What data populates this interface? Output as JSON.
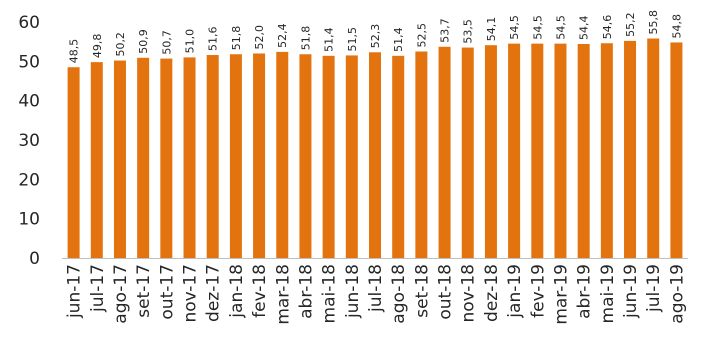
{
  "chart_data": {
    "type": "bar",
    "title": "",
    "xlabel": "",
    "ylabel": "",
    "ylim": [
      0,
      60
    ],
    "yticks": [
      0,
      10,
      20,
      30,
      40,
      50,
      60
    ],
    "grid": false,
    "bar_color": "#E2730E",
    "categories": [
      "jun-17",
      "jul-17",
      "ago-17",
      "set-17",
      "out-17",
      "nov-17",
      "dez-17",
      "jan-18",
      "fev-18",
      "mar-18",
      "abr-18",
      "mai-18",
      "jun-18",
      "jul-18",
      "ago-18",
      "set-18",
      "out-18",
      "nov-18",
      "dez-18",
      "jan-19",
      "fev-19",
      "mar-19",
      "abr-19",
      "mai-19",
      "jun-19",
      "jul-19",
      "ago-19"
    ],
    "values": [
      48.5,
      49.8,
      50.2,
      50.9,
      50.7,
      51.0,
      51.6,
      51.8,
      52.0,
      52.4,
      51.8,
      51.4,
      51.5,
      52.3,
      51.4,
      52.5,
      53.7,
      53.5,
      54.1,
      54.5,
      54.5,
      54.5,
      54.4,
      54.6,
      55.2,
      55.8,
      54.8
    ],
    "value_labels": [
      "48,5",
      "49,8",
      "50,2",
      "50,9",
      "50,7",
      "51,0",
      "51,6",
      "51,8",
      "52,0",
      "52,4",
      "51,8",
      "51,4",
      "51,5",
      "52,3",
      "51,4",
      "52,5",
      "53,7",
      "53,5",
      "54,1",
      "54,5",
      "54,5",
      "54,5",
      "54,4",
      "54,6",
      "55,2",
      "55,8",
      "54,8"
    ]
  }
}
